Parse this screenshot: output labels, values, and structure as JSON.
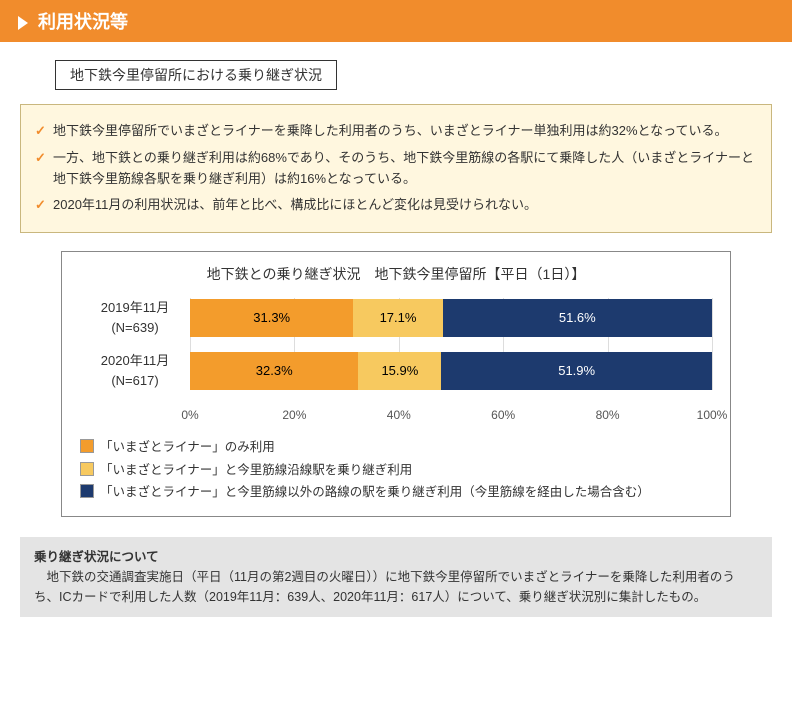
{
  "header": {
    "title": "利用状況等"
  },
  "subtitle": "地下鉄今里停留所における乗り継ぎ状況",
  "bullets": [
    "地下鉄今里停留所でいまざとライナーを乗降した利用者のうち、いまざとライナー単独利用は約32%となっている。",
    "一方、地下鉄との乗り継ぎ利用は約68%であり、そのうち、地下鉄今里筋線の各駅にて乗降した人（いまざとライナーと地下鉄今里筋線各駅を乗り継ぎ利用）は約16%となっている。",
    "2020年11月の利用状況は、前年と比べ、構成比にほとんど変化は見受けられない。"
  ],
  "chart": {
    "type": "stacked-bar-horizontal",
    "title": "地下鉄との乗り継ぎ状況　地下鉄今里停留所【平日（1日）】",
    "xlim": [
      0,
      100
    ],
    "xtick_step": 20,
    "xtick_labels": [
      "0%",
      "20%",
      "40%",
      "60%",
      "80%",
      "100%"
    ],
    "series_colors": [
      "#f39c2c",
      "#f7c95f",
      "#1d3a6e"
    ],
    "series_text_colors": [
      "#000000",
      "#000000",
      "#ffffff"
    ],
    "background_color": "#ffffff",
    "grid_color": "#dddddd",
    "rows": [
      {
        "label_line1": "2019年11月",
        "label_line2": "(N=639)",
        "values": [
          31.3,
          17.1,
          51.6
        ],
        "value_labels": [
          "31.3%",
          "17.1%",
          "51.6%"
        ]
      },
      {
        "label_line1": "2020年11月",
        "label_line2": "(N=617)",
        "values": [
          32.3,
          15.9,
          51.9
        ],
        "value_labels": [
          "32.3%",
          "15.9%",
          "51.9%"
        ]
      }
    ],
    "legend": [
      "「いまざとライナー」のみ利用",
      "「いまざとライナー」と今里筋線沿線駅を乗り継ぎ利用",
      "「いまざとライナー」と今里筋線以外の路線の駅を乗り継ぎ利用（今里筋線を経由した場合含む）"
    ]
  },
  "note": {
    "title": "乗り継ぎ状況について",
    "body": "　地下鉄の交通調査実施日（平日（11月の第2週目の火曜日））に地下鉄今里停留所でいまざとライナーを乗降した利用者のうち、ICカードで利用した人数（2019年11月：639人、2020年11月：617人）について、乗り継ぎ状況別に集計したもの。"
  }
}
